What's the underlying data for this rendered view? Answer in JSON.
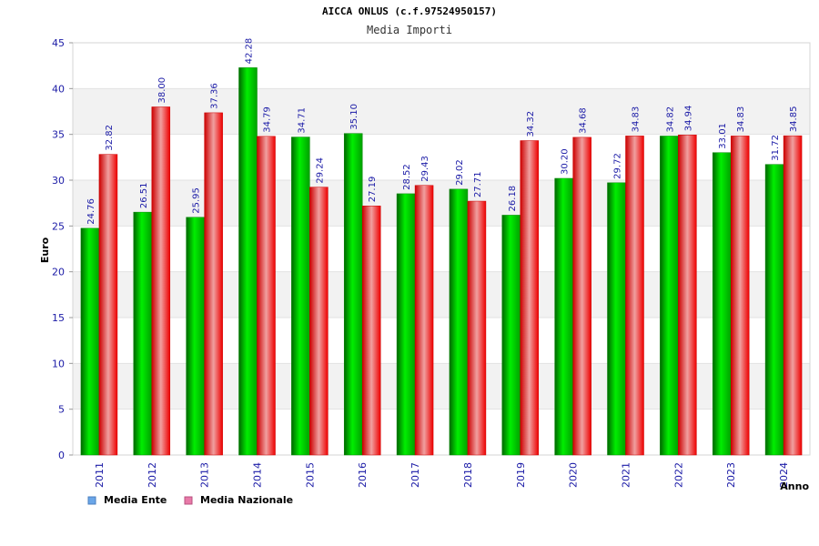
{
  "chart_data": {
    "type": "bar",
    "title": "AICCA ONLUS (c.f.97524950157)",
    "subtitle": "Media Importi",
    "xlabel": "Anno",
    "ylabel": "Euro",
    "ylim": [
      0,
      45
    ],
    "yticks": [
      "0",
      "5",
      "10",
      "15",
      "20",
      "25",
      "30",
      "35",
      "40",
      "45"
    ],
    "grid": true,
    "legend_position": "bottom-left",
    "categories": [
      "2011",
      "2012",
      "2013",
      "2014",
      "2015",
      "2016",
      "2017",
      "2018",
      "2019",
      "2020",
      "2021",
      "2022",
      "2023",
      "2024"
    ],
    "series": [
      {
        "name": "Media Ente",
        "color": "#00c000",
        "values": [
          24.76,
          26.51,
          25.95,
          42.28,
          34.71,
          35.1,
          28.52,
          29.02,
          26.18,
          30.2,
          29.72,
          34.82,
          33.01,
          31.72
        ],
        "labels": [
          "24.76",
          "26.51",
          "25.95",
          "42.28",
          "34.71",
          "35.10",
          "28.52",
          "29.02",
          "26.18",
          "30.20",
          "29.72",
          "34.82",
          "33.01",
          "31.72"
        ]
      },
      {
        "name": "Media Nazionale",
        "color": "#e00000",
        "values": [
          32.82,
          38.0,
          37.36,
          34.79,
          29.24,
          27.19,
          29.43,
          27.71,
          34.32,
          34.68,
          34.83,
          34.94,
          34.83,
          34.85
        ],
        "labels": [
          "32.82",
          "38.00",
          "37.36",
          "34.79",
          "29.24",
          "27.19",
          "29.43",
          "27.71",
          "34.32",
          "34.68",
          "34.83",
          "34.94",
          "34.83",
          "34.85"
        ]
      }
    ],
    "legend": [
      {
        "label": "Media Ente",
        "swatch": "#6aa6e8"
      },
      {
        "label": "Media Nazionale",
        "swatch": "#e87aa8"
      }
    ]
  }
}
